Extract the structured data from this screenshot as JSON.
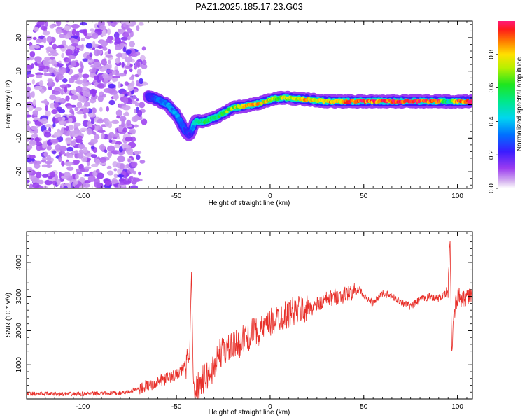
{
  "title": "PAZ1.2025.185.17.23.G03",
  "colors": {
    "snr_line": "#e8302a",
    "axis": "#000000"
  },
  "chart_data": [
    {
      "type": "heatmap",
      "title": "PAZ1.2025.185.17.23.G03",
      "xlabel": "Height of straight line (km)",
      "ylabel": "Frequency (Hz)",
      "xlim": [
        -130,
        108
      ],
      "ylim": [
        -25,
        25
      ],
      "xticks": [
        -100,
        -50,
        0,
        50,
        100
      ],
      "yticks": [
        -20,
        -10,
        0,
        10,
        20
      ],
      "colorbar": {
        "label": "Normalized spectral amplitude",
        "range": [
          0,
          1
        ],
        "ticks": [
          "0.0",
          "0.2",
          "0.4",
          "0.6",
          "0.8"
        ],
        "tick_values": [
          0.0,
          0.2,
          0.4,
          0.6,
          0.8
        ],
        "colormap": "rainbow"
      },
      "ridge": {
        "x": [
          -65,
          -60,
          -55,
          -50,
          -47,
          -45,
          -43,
          -40,
          -35,
          -30,
          -25,
          -20,
          -15,
          -10,
          -5,
          0,
          5,
          10,
          20,
          30,
          40,
          50,
          60,
          70,
          80,
          90,
          95,
          100,
          108
        ],
        "y": [
          2.5,
          1.5,
          0,
          -3,
          -6,
          -8,
          -9,
          -5,
          -5,
          -4,
          -2.5,
          -1,
          -0.5,
          0,
          0.5,
          1.5,
          2,
          2,
          1.5,
          1,
          1,
          1,
          1,
          1,
          1,
          1,
          1,
          1,
          1
        ],
        "amplitude": [
          0.2,
          0.3,
          0.35,
          0.35,
          0.3,
          0.25,
          0.2,
          0.45,
          0.55,
          0.55,
          0.6,
          0.7,
          0.8,
          0.8,
          0.8,
          0.75,
          0.7,
          0.75,
          0.8,
          0.8,
          0.85,
          0.9,
          0.95,
          0.95,
          0.95,
          0.95,
          0.4,
          0.9,
          0.95
        ]
      },
      "noise_region_x": [
        -130,
        -65
      ],
      "noise_amplitude": 0.1
    },
    {
      "type": "line",
      "xlabel": "Height of straight line (km)",
      "ylabel": "SNR (10 * v/v)",
      "xlim": [
        -130,
        108
      ],
      "ylim": [
        0,
        4900
      ],
      "xticks": [
        -100,
        -50,
        0,
        50,
        100
      ],
      "yticks": [
        1000,
        2000,
        3000,
        4000
      ],
      "x": [
        -130,
        -120,
        -110,
        -100,
        -90,
        -80,
        -75,
        -70,
        -65,
        -60,
        -55,
        -50,
        -46,
        -43,
        -42,
        -41,
        -40,
        -38,
        -35,
        -30,
        -28,
        -25,
        -20,
        -15,
        -10,
        -5,
        0,
        5,
        10,
        15,
        20,
        25,
        30,
        35,
        40,
        45,
        48,
        50,
        55,
        60,
        65,
        70,
        75,
        80,
        85,
        90,
        95,
        96,
        97,
        98,
        100,
        105,
        108
      ],
      "y": [
        150,
        150,
        140,
        150,
        160,
        170,
        220,
        300,
        400,
        500,
        600,
        700,
        900,
        1200,
        3800,
        500,
        300,
        400,
        600,
        900,
        1300,
        1400,
        1500,
        1700,
        1900,
        2000,
        2200,
        2400,
        2500,
        2600,
        2650,
        2750,
        2900,
        3000,
        3050,
        3150,
        3200,
        3000,
        2800,
        3100,
        3000,
        2850,
        2700,
        2900,
        3000,
        2950,
        3100,
        4800,
        1300,
        2500,
        3000,
        3000,
        3000
      ]
    }
  ]
}
